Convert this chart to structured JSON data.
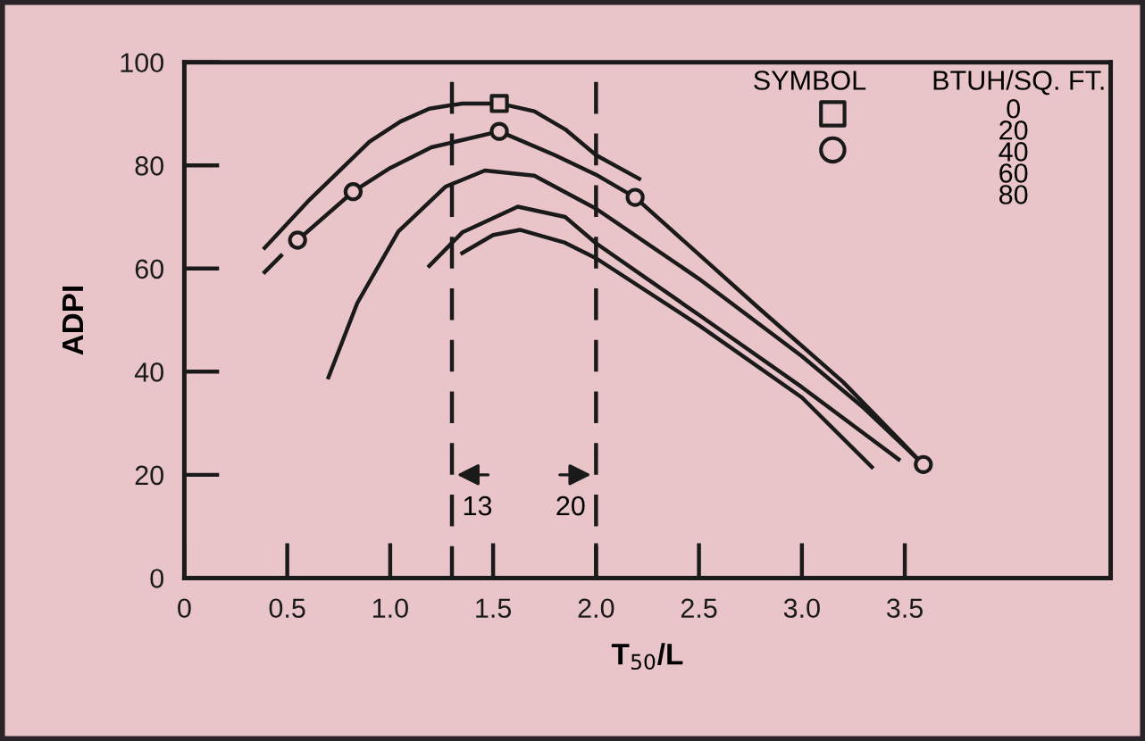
{
  "chart_data": {
    "type": "line",
    "xlabel": "T$_{50}$/L",
    "ylabel": "ADPI",
    "xlim": [
      0,
      4.5
    ],
    "ylim": [
      0,
      100
    ],
    "xticks": [
      0,
      0.5,
      {
        "value": 1,
        "label": "1.0"
      },
      1.5,
      {
        "value": 2,
        "label": "2.0"
      },
      2.5,
      {
        "value": 3,
        "label": "3.0"
      },
      3.5
    ],
    "yticks": [
      0,
      20,
      40,
      60,
      80,
      100
    ],
    "grid": false,
    "line_style": "solid",
    "marker": "none",
    "series": [
      {
        "color": "#1a1a1a",
        "x": [
          0.39,
          0.6,
          0.9,
          1.05,
          1.19,
          1.35,
          1.53,
          1.7,
          1.85,
          2.0,
          2.21
        ],
        "values": [
          64,
          73,
          84.6,
          88.5,
          91,
          92,
          92,
          90.5,
          87,
          82,
          77.4
        ]
      },
      {
        "color": "#1a1a1a",
        "x": [
          0.39,
          0.47,
          0.51,
          0.55,
          0.82,
          1.0,
          1.2,
          1.53,
          1.8,
          2.0,
          2.19,
          2.8,
          3.2,
          3.59
        ],
        "values": [
          59.3,
          62.5,
          null,
          65.5,
          74.9,
          79.5,
          83.5,
          86.6,
          82,
          78.2,
          73.8,
          52,
          38,
          22
        ]
      },
      {
        "color": "#1a1a1a",
        "x": [
          0.7,
          0.84,
          1.04,
          1.27,
          1.46,
          1.7,
          2.0,
          2.5,
          3.0,
          3.3,
          3.59
        ],
        "values": [
          38.9,
          53.3,
          67.2,
          75.9,
          79,
          78,
          71.6,
          58,
          43,
          33,
          22
        ]
      },
      {
        "color": "#1a1a1a",
        "x": [
          1.19,
          1.35,
          1.62,
          1.85,
          2.0,
          2.5,
          3.0,
          3.47
        ],
        "values": [
          60.5,
          67,
          72,
          70,
          64.9,
          51,
          37,
          23
        ]
      },
      {
        "color": "#1a1a1a",
        "x": [
          1.35,
          1.5,
          1.63,
          1.85,
          2.0,
          2.5,
          3.0,
          3.34
        ],
        "values": [
          63,
          66.5,
          67.5,
          65,
          62,
          49,
          35,
          21.5
        ]
      },
      {
        "type": "scatter",
        "marker": "square",
        "color": "#1a1a1a",
        "x": [
          1.53
        ],
        "values": [
          92
        ]
      },
      {
        "type": "scatter",
        "marker": "circle",
        "color": "#1a1a1a",
        "x": [
          0.55,
          0.82,
          1.53,
          2.19,
          3.59
        ],
        "values": [
          65.5,
          74.9,
          86.6,
          73.8,
          22
        ]
      }
    ],
    "ref_lines": [
      {
        "axis": "x",
        "value": 1.3,
        "line_style": "dashed",
        "color": "#1a1a1a"
      },
      {
        "axis": "x",
        "value": 2.0,
        "line_style": "dashed",
        "color": "#1a1a1a"
      }
    ],
    "annotations": [
      "SYMBOL",
      "BTUH/SQ. FT.",
      "0\n20\n40\n60\n80",
      "13",
      "20"
    ]
  }
}
